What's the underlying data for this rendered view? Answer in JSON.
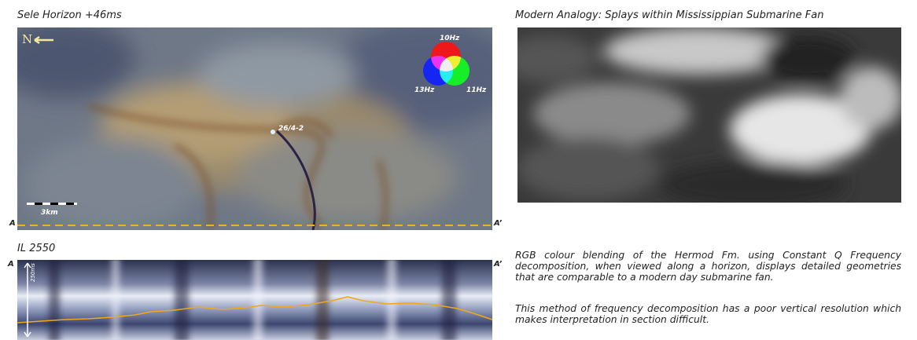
{
  "left_panel": {
    "title": "Sele Horizon +46ms",
    "north": "N",
    "legend": {
      "red": "10Hz",
      "blue": "13Hz",
      "green": "11Hz"
    },
    "well": "26/4-2",
    "scale_bar": "3km",
    "section_start": "A",
    "section_end": "A’"
  },
  "section_panel": {
    "title": "IL 2550",
    "start": "A",
    "end": "A’",
    "scale": "250ms"
  },
  "right_panel": {
    "title": "Modern Analogy: Splays within Mississippian Submarine Fan",
    "paragraphs": [
      "RGB colour blending of the Hermod Fm. using Constant Q Frequency decomposition, when viewed along a horizon, displays detailed geometries that are comparable to a modern day submarine fan.",
      "This method of frequency decomposition has a poor vertical resolution which makes interpretation in section difficult."
    ]
  }
}
